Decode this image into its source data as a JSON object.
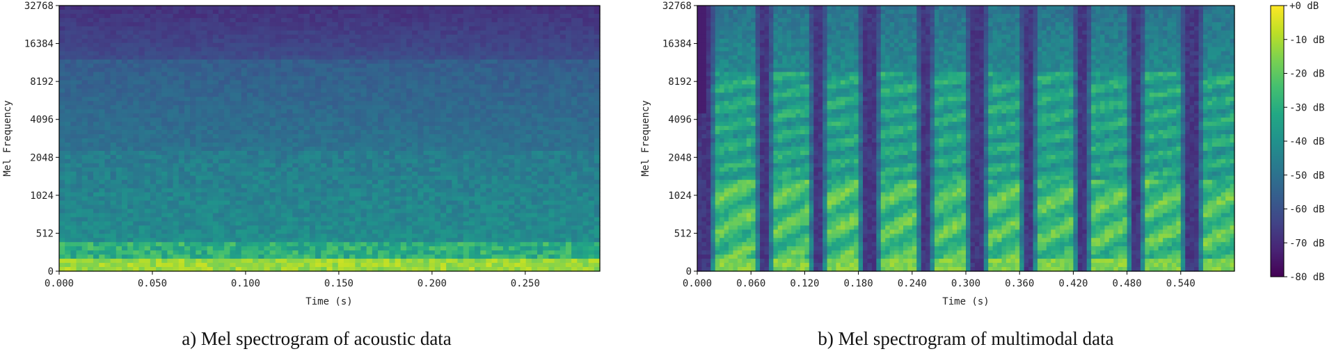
{
  "colors": {
    "viridis": [
      "#440154",
      "#482475",
      "#414487",
      "#355f8d",
      "#2a788e",
      "#21918c",
      "#22a884",
      "#44bf70",
      "#7ad151",
      "#bddf26",
      "#fde725"
    ]
  },
  "chart_data": [
    {
      "type": "heatmap",
      "caption": "a) Mel spectrogram of acoustic data",
      "xlabel": "Time (s)",
      "ylabel": "Mel Frequency",
      "xlim": [
        0,
        0.29
      ],
      "x_ticks": [
        "0.000",
        "0.050",
        "0.100",
        "0.150",
        "0.200",
        "0.250"
      ],
      "x_tick_values": [
        0,
        0.05,
        0.1,
        0.15,
        0.2,
        0.25
      ],
      "y_ticks": [
        "0",
        "512",
        "1024",
        "2048",
        "4096",
        "8192",
        "16384",
        "32768"
      ],
      "y_scale": "mel",
      "z_unit": "dB",
      "pattern": "stationary: bright near 0 Hz, gradually darker with frequency, darkest above 16384"
    },
    {
      "type": "heatmap",
      "caption": "b) Mel spectrogram of multimodal data",
      "xlabel": "Time (s)",
      "ylabel": "Mel Frequency",
      "xlim": [
        0,
        0.6
      ],
      "x_ticks": [
        "0.000",
        "0.060",
        "0.120",
        "0.180",
        "0.240",
        "0.300",
        "0.360",
        "0.420",
        "0.480",
        "0.540"
      ],
      "x_tick_values": [
        0,
        0.06,
        0.12,
        0.18,
        0.24,
        0.3,
        0.36,
        0.42,
        0.48,
        0.54
      ],
      "y_ticks": [
        "0",
        "512",
        "1024",
        "2048",
        "4096",
        "8192",
        "16384",
        "32768"
      ],
      "y_scale": "mel",
      "z_unit": "dB",
      "dark_gap_times": [
        0.008,
        0.074,
        0.135,
        0.193,
        0.256,
        0.312,
        0.37,
        0.43,
        0.49,
        0.552
      ],
      "pattern": "periodic bright bursts separated by narrow dark vertical gaps"
    }
  ],
  "colorbar": {
    "ticks": [
      "+0 dB",
      "-10 dB",
      "-20 dB",
      "-30 dB",
      "-40 dB",
      "-50 dB",
      "-60 dB",
      "-70 dB",
      "-80 dB"
    ],
    "range": [
      -80,
      0
    ]
  }
}
